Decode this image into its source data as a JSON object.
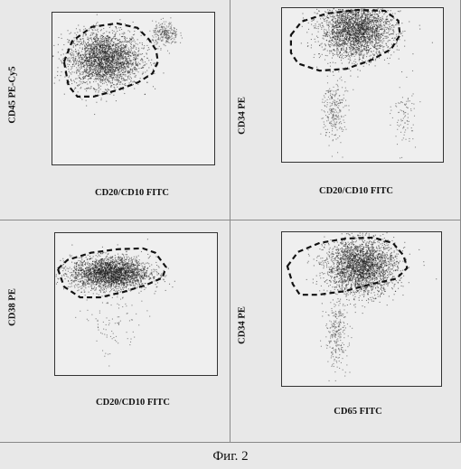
{
  "figure": {
    "caption": "Фиг. 2"
  },
  "panels": [
    {
      "id": "top-left",
      "xlabel": "CD20/CD10 FITC",
      "ylabel": "CD45 PE-Cy5",
      "chart_data": {
        "type": "scatter",
        "xlabel": "CD20/CD10 FITC",
        "ylabel": "CD45 PE-Cy5",
        "xscale": "log",
        "yscale": "log",
        "xlim": [
          1,
          100000
        ],
        "ylim": [
          1,
          100000
        ],
        "clusters": [
          {
            "x_center": 40,
            "y_center": 3000,
            "spread": "wide",
            "density": "high"
          },
          {
            "x_center": 3000,
            "y_center": 20000,
            "spread": "small",
            "density": "low"
          }
        ],
        "gate": {
          "shape": "dashed-polygon",
          "style": "dashed"
        }
      }
    },
    {
      "id": "top-right",
      "xlabel": "CD20/CD10 FITC",
      "ylabel": "CD34 PE",
      "chart_data": {
        "type": "scatter",
        "xlabel": "CD20/CD10 FITC",
        "ylabel": "CD34 PE",
        "xscale": "log",
        "yscale": "log",
        "xlim": [
          1,
          100000
        ],
        "ylim": [
          1,
          100000
        ],
        "clusters": [
          {
            "x_center": 200,
            "y_center": 20000,
            "spread": "wide",
            "density": "high"
          },
          {
            "x_center": 40,
            "y_center": 50,
            "spread": "vertical",
            "density": "low"
          },
          {
            "x_center": 6000,
            "y_center": 30,
            "spread": "vertical",
            "density": "very-low"
          }
        ],
        "gate": {
          "shape": "dashed-polygon",
          "style": "dashed"
        }
      }
    },
    {
      "id": "bottom-left",
      "xlabel": "CD20/CD10 FITC",
      "ylabel": "CD38 PE",
      "chart_data": {
        "type": "scatter",
        "xlabel": "CD20/CD10 FITC",
        "ylabel": "CD38 PE",
        "xscale": "log",
        "yscale": "log",
        "xlim": [
          1,
          100000
        ],
        "ylim": [
          1,
          100000
        ],
        "clusters": [
          {
            "x_center": 50,
            "y_center": 4000,
            "spread": "horizontal",
            "density": "high"
          },
          {
            "x_center": 60,
            "y_center": 60,
            "spread": "sparse",
            "density": "very-low"
          }
        ],
        "gate": {
          "shape": "dashed-polygon",
          "style": "dashed"
        }
      }
    },
    {
      "id": "bottom-right",
      "xlabel": "CD65 FITC",
      "ylabel": "CD34 PE",
      "chart_data": {
        "type": "scatter",
        "xlabel": "CD65 FITC",
        "ylabel": "CD34 PE",
        "xscale": "log",
        "yscale": "log",
        "xlim": [
          1,
          100000
        ],
        "ylim": [
          1,
          100000
        ],
        "clusters": [
          {
            "x_center": 300,
            "y_center": 8000,
            "spread": "wide",
            "density": "high"
          },
          {
            "x_center": 50,
            "y_center": 50,
            "spread": "vertical",
            "density": "low"
          }
        ],
        "gate": {
          "shape": "dashed-polygon",
          "style": "dashed"
        }
      }
    }
  ]
}
